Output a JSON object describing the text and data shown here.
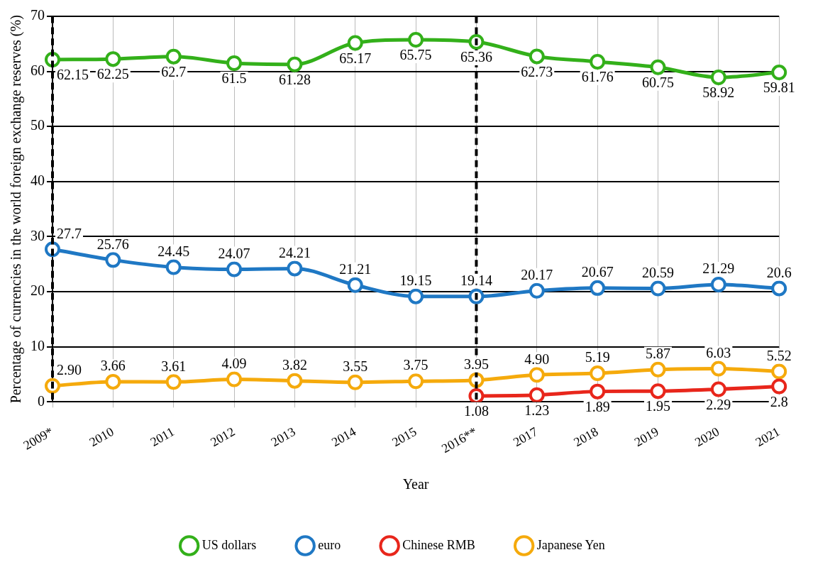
{
  "chart_data": {
    "type": "line",
    "xlabel": "Year",
    "ylabel": "Percentage of currencies in the world foreign exchange reserves (%)",
    "categories": [
      "2009*",
      "2010",
      "2011",
      "2012",
      "2013",
      "2014",
      "2015",
      "2016**",
      "2017",
      "2018",
      "2019",
      "2020",
      "2021"
    ],
    "series": [
      {
        "name": "US dollars",
        "color": "#33b01a",
        "values": [
          62.15,
          62.25,
          62.7,
          61.5,
          61.28,
          65.17,
          65.75,
          65.36,
          62.73,
          61.76,
          60.75,
          58.92,
          59.81
        ],
        "value_labels": [
          "62.15",
          "62.25",
          "62.7",
          "61.5",
          "61.28",
          "65.17",
          "65.75",
          "65.36",
          "62.73",
          "61.76",
          "60.75",
          "58.92",
          "59.81"
        ]
      },
      {
        "name": "euro",
        "color": "#1f78c4",
        "values": [
          27.7,
          25.76,
          24.45,
          24.07,
          24.21,
          21.21,
          19.15,
          19.14,
          20.17,
          20.67,
          20.59,
          21.29,
          20.6
        ],
        "value_labels": [
          "27.7",
          "25.76",
          "24.45",
          "24.07",
          "24.21",
          "21.21",
          "19.15",
          "19.14",
          "20.17",
          "20.67",
          "20.59",
          "21.29",
          "20.6"
        ]
      },
      {
        "name": "Chinese RMB",
        "color": "#e8261b",
        "values": [
          null,
          null,
          null,
          null,
          null,
          null,
          null,
          1.08,
          1.23,
          1.89,
          1.95,
          2.29,
          2.8
        ],
        "value_labels": [
          null,
          null,
          null,
          null,
          null,
          null,
          null,
          "1.08",
          "1.23",
          "1.89",
          "1.95",
          "2.29",
          "2.8"
        ]
      },
      {
        "name": "Japanese Yen",
        "color": "#f5aa0c",
        "values": [
          2.9,
          3.66,
          3.61,
          4.09,
          3.82,
          3.55,
          3.75,
          3.95,
          4.9,
          5.19,
          5.87,
          6.03,
          5.52
        ],
        "value_labels": [
          "2.90",
          "3.66",
          "3.61",
          "4.09",
          "3.82",
          "3.55",
          "3.75",
          "3.95",
          "4.90",
          "5.19",
          "5.87",
          "6.03",
          "5.52"
        ]
      }
    ],
    "ylim": [
      0,
      70
    ],
    "yticks": [
      0,
      10,
      20,
      30,
      40,
      50,
      60,
      70
    ],
    "grid": true,
    "legend": "bottom",
    "marker": "circle",
    "line_style": "solid",
    "ref_lines": [
      {
        "axis": "x",
        "value": "2009*",
        "color": "#000000",
        "line_style": "dashed"
      },
      {
        "axis": "x",
        "value": "2016**",
        "color": "#000000",
        "line_style": "dashed"
      }
    ]
  }
}
